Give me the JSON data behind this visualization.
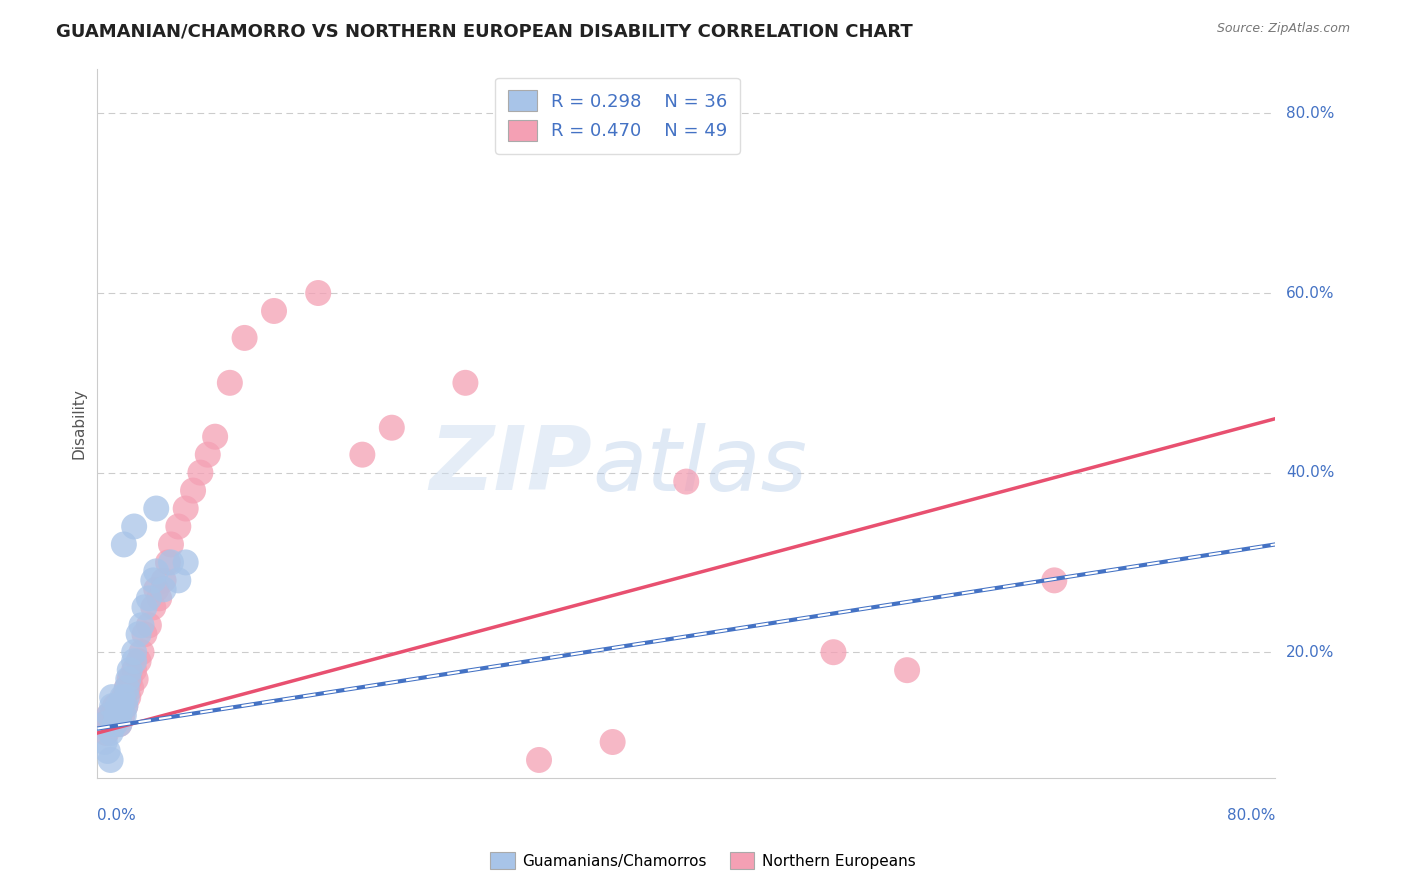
{
  "title": "GUAMANIAN/CHAMORRO VS NORTHERN EUROPEAN DISABILITY CORRELATION CHART",
  "source": "Source: ZipAtlas.com",
  "ylabel": "Disability",
  "watermark": "ZIPatlas",
  "legend_blue_label": "Guamanians/Chamorros",
  "legend_pink_label": "Northern Europeans",
  "legend_blue_R": "R = 0.298",
  "legend_blue_N": "N = 36",
  "legend_pink_R": "R = 0.470",
  "legend_pink_N": "N = 49",
  "blue_color": "#a8c4e8",
  "pink_color": "#f4a0b4",
  "blue_line_color": "#4472c4",
  "pink_line_color": "#e85070",
  "blue_scatter_x": [
    0.005,
    0.008,
    0.009,
    0.01,
    0.01,
    0.012,
    0.013,
    0.014,
    0.015,
    0.015,
    0.016,
    0.017,
    0.018,
    0.019,
    0.02,
    0.02,
    0.021,
    0.022,
    0.025,
    0.025,
    0.028,
    0.03,
    0.032,
    0.035,
    0.038,
    0.04,
    0.045,
    0.05,
    0.055,
    0.06,
    0.005,
    0.007,
    0.009,
    0.018,
    0.025,
    0.04
  ],
  "blue_scatter_y": [
    0.12,
    0.13,
    0.11,
    0.14,
    0.15,
    0.12,
    0.13,
    0.14,
    0.13,
    0.12,
    0.14,
    0.15,
    0.13,
    0.14,
    0.16,
    0.15,
    0.17,
    0.18,
    0.19,
    0.2,
    0.22,
    0.23,
    0.25,
    0.26,
    0.28,
    0.29,
    0.27,
    0.3,
    0.28,
    0.3,
    0.1,
    0.09,
    0.08,
    0.32,
    0.34,
    0.36
  ],
  "pink_scatter_x": [
    0.004,
    0.006,
    0.008,
    0.009,
    0.01,
    0.011,
    0.012,
    0.013,
    0.015,
    0.015,
    0.016,
    0.017,
    0.018,
    0.019,
    0.02,
    0.021,
    0.022,
    0.023,
    0.025,
    0.026,
    0.028,
    0.03,
    0.032,
    0.035,
    0.038,
    0.04,
    0.042,
    0.045,
    0.048,
    0.05,
    0.055,
    0.06,
    0.065,
    0.07,
    0.075,
    0.08,
    0.09,
    0.1,
    0.12,
    0.15,
    0.18,
    0.2,
    0.25,
    0.3,
    0.35,
    0.4,
    0.5,
    0.55,
    0.65
  ],
  "pink_scatter_y": [
    0.12,
    0.11,
    0.13,
    0.12,
    0.13,
    0.12,
    0.14,
    0.13,
    0.12,
    0.13,
    0.14,
    0.13,
    0.15,
    0.14,
    0.16,
    0.15,
    0.17,
    0.16,
    0.18,
    0.17,
    0.19,
    0.2,
    0.22,
    0.23,
    0.25,
    0.27,
    0.26,
    0.28,
    0.3,
    0.32,
    0.34,
    0.36,
    0.38,
    0.4,
    0.42,
    0.44,
    0.5,
    0.55,
    0.58,
    0.6,
    0.42,
    0.45,
    0.5,
    0.08,
    0.1,
    0.39,
    0.2,
    0.18,
    0.28
  ],
  "blue_regline_x": [
    0.0,
    0.8
  ],
  "blue_regline_y": [
    0.115,
    0.32
  ],
  "pink_regline_x": [
    0.0,
    0.8
  ],
  "pink_regline_y": [
    0.11,
    0.46
  ],
  "xlim": [
    0.0,
    0.8
  ],
  "ylim": [
    0.06,
    0.85
  ],
  "ytick_positions": [
    0.2,
    0.4,
    0.6,
    0.8
  ],
  "ytick_labels": [
    "20.0%",
    "40.0%",
    "60.0%",
    "80.0%"
  ],
  "background_color": "#ffffff",
  "grid_color": "#cccccc"
}
